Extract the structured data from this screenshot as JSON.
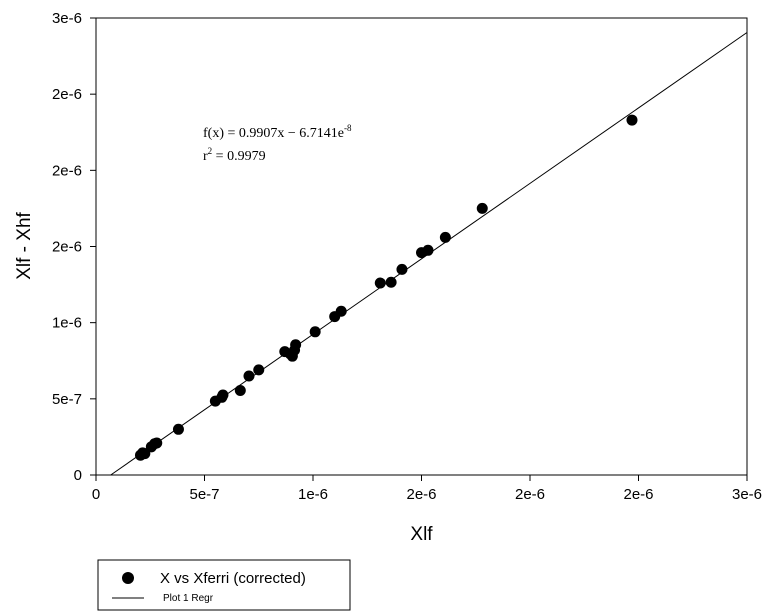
{
  "chart_data": {
    "type": "scatter",
    "xlabel": "Xlf",
    "ylabel": "Xlf - Xhf",
    "xlim": [
      0,
      3e-06
    ],
    "ylim": [
      0,
      3e-06
    ],
    "grid": false,
    "x_ticks": [
      0,
      5e-07,
      1e-06,
      1.5e-06,
      2e-06,
      2.5e-06,
      3e-06
    ],
    "x_tick_labels": [
      "0",
      "5e-7",
      "1e-6",
      "2e-6",
      "2e-6",
      "2e-6",
      "3e-6"
    ],
    "y_ticks": [
      0,
      5e-07,
      1e-06,
      1.5e-06,
      2e-06,
      2.5e-06,
      3e-06
    ],
    "y_tick_labels": [
      "0",
      "5e-7",
      "1e-6",
      "2e-6",
      "2e-6",
      "2e-6",
      "3e-6"
    ],
    "series": [
      {
        "name": "X vs Xferri (corrected)",
        "kind": "points",
        "color": "#000000",
        "points": [
          [
            2.05e-07,
            1.3e-07
          ],
          [
            2.15e-07,
            1.45e-07
          ],
          [
            2.25e-07,
            1.4e-07
          ],
          [
            2.55e-07,
            1.85e-07
          ],
          [
            2.7e-07,
            2.05e-07
          ],
          [
            2.8e-07,
            2.1e-07
          ],
          [
            3.8e-07,
            3e-07
          ],
          [
            5.5e-07,
            4.85e-07
          ],
          [
            5.8e-07,
            5.1e-07
          ],
          [
            5.85e-07,
            5.25e-07
          ],
          [
            6.65e-07,
            5.55e-07
          ],
          [
            7.05e-07,
            6.5e-07
          ],
          [
            7.5e-07,
            6.9e-07
          ],
          [
            8.7e-07,
            8.1e-07
          ],
          [
            8.95e-07,
            7.95e-07
          ],
          [
            9.05e-07,
            7.8e-07
          ],
          [
            9.15e-07,
            8.2e-07
          ],
          [
            9.2e-07,
            8.55e-07
          ],
          [
            1.01e-06,
            9.4e-07
          ],
          [
            1.1e-06,
            1.04e-06
          ],
          [
            1.13e-06,
            1.075e-06
          ],
          [
            1.31e-06,
            1.26e-06
          ],
          [
            1.36e-06,
            1.265e-06
          ],
          [
            1.41e-06,
            1.35e-06
          ],
          [
            1.5e-06,
            1.46e-06
          ],
          [
            1.53e-06,
            1.475e-06
          ],
          [
            1.61e-06,
            1.56e-06
          ],
          [
            1.78e-06,
            1.75e-06
          ],
          [
            2.47e-06,
            2.33e-06
          ]
        ]
      },
      {
        "name": "Plot 1 Regr",
        "kind": "line",
        "color": "#000000",
        "slope": 0.9907,
        "intercept": -6.7141e-08,
        "x_range": [
          6.7769e-08,
          3e-06
        ]
      }
    ],
    "annotations": {
      "equation_prefix": "f(x) = 0.9907x − 6.7141e",
      "equation_exponent": "-8",
      "r2_prefix": "r",
      "r2_exponent": "2",
      "r2_value": " = 0.9979"
    },
    "legend": {
      "placement": "bottom-left",
      "entries": [
        "X vs Xferri (corrected)",
        "Plot 1 Regr"
      ]
    }
  }
}
